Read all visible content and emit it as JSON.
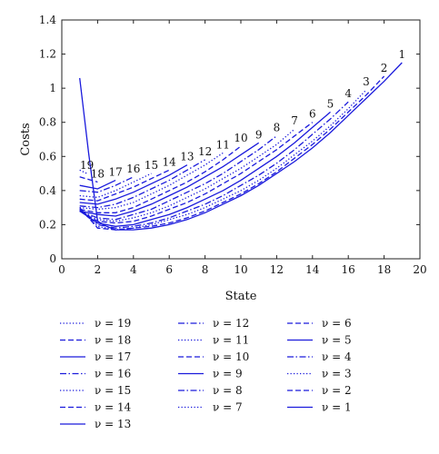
{
  "chart_data": {
    "type": "line",
    "xlabel": "State",
    "ylabel": "Costs",
    "xlim": [
      0,
      20
    ],
    "ylim": [
      0,
      1.4
    ],
    "xticks": [
      "0",
      "2",
      "4",
      "6",
      "8",
      "10",
      "12",
      "14",
      "16",
      "18",
      "20"
    ],
    "yticks": [
      "0",
      "0.2",
      "0.4",
      "0.6",
      "0.8",
      "1",
      "1.2",
      "1.4"
    ],
    "grid": false,
    "legend_position": "below",
    "color": "#1a1adc",
    "series": [
      {
        "v": 1,
        "label": "1",
        "legend": "ν = 1",
        "style": "solid",
        "x": [
          1,
          1.5,
          2,
          2.5,
          3,
          4,
          5,
          6,
          7,
          8,
          9,
          10,
          11,
          12,
          13,
          14,
          15,
          16,
          17,
          18,
          19
        ],
        "y": [
          1.06,
          0.62,
          0.22,
          0.19,
          0.17,
          0.17,
          0.18,
          0.2,
          0.23,
          0.27,
          0.32,
          0.37,
          0.43,
          0.5,
          0.57,
          0.65,
          0.74,
          0.84,
          0.94,
          1.04,
          1.15
        ]
      },
      {
        "v": 2,
        "label": "2",
        "legend": "ν = 2",
        "style": "dashed",
        "x": [
          1,
          2,
          3,
          4,
          5,
          6,
          7,
          8,
          9,
          10,
          11,
          12,
          13,
          14,
          15,
          16,
          17,
          18
        ],
        "y": [
          0.3,
          0.18,
          0.17,
          0.18,
          0.19,
          0.21,
          0.24,
          0.28,
          0.33,
          0.38,
          0.44,
          0.51,
          0.59,
          0.67,
          0.76,
          0.86,
          0.96,
          1.07
        ]
      },
      {
        "v": 3,
        "label": "3",
        "legend": "ν = 3",
        "style": "dotted",
        "x": [
          1,
          2,
          3,
          4,
          5,
          6,
          7,
          8,
          9,
          10,
          11,
          12,
          13,
          14,
          15,
          16,
          17
        ],
        "y": [
          0.29,
          0.19,
          0.17,
          0.18,
          0.2,
          0.23,
          0.26,
          0.3,
          0.35,
          0.4,
          0.46,
          0.53,
          0.61,
          0.69,
          0.78,
          0.88,
          0.99
        ]
      },
      {
        "v": 4,
        "label": "4",
        "legend": "ν = 4",
        "style": "dashdot",
        "x": [
          1,
          2,
          3,
          4,
          5,
          6,
          7,
          8,
          9,
          10,
          11,
          12,
          13,
          14,
          15,
          16
        ],
        "y": [
          0.29,
          0.2,
          0.18,
          0.19,
          0.21,
          0.24,
          0.28,
          0.32,
          0.37,
          0.43,
          0.49,
          0.56,
          0.64,
          0.73,
          0.82,
          0.92
        ]
      },
      {
        "v": 5,
        "label": "5",
        "legend": "ν = 5",
        "style": "solid",
        "x": [
          1,
          2,
          3,
          4,
          5,
          6,
          7,
          8,
          9,
          10,
          11,
          12,
          13,
          14,
          15
        ],
        "y": [
          0.28,
          0.21,
          0.19,
          0.2,
          0.23,
          0.26,
          0.3,
          0.35,
          0.4,
          0.46,
          0.53,
          0.6,
          0.68,
          0.77,
          0.86
        ]
      },
      {
        "v": 6,
        "label": "6",
        "legend": "ν = 6",
        "style": "dashed",
        "x": [
          1,
          2,
          3,
          4,
          5,
          6,
          7,
          8,
          9,
          10,
          11,
          12,
          13,
          14
        ],
        "y": [
          0.28,
          0.22,
          0.21,
          0.22,
          0.25,
          0.29,
          0.33,
          0.38,
          0.44,
          0.5,
          0.57,
          0.64,
          0.72,
          0.8
        ]
      },
      {
        "v": 7,
        "label": "7",
        "legend": "ν = 7",
        "style": "dotted",
        "x": [
          1,
          2,
          3,
          4,
          5,
          6,
          7,
          8,
          9,
          10,
          11,
          12,
          13
        ],
        "y": [
          0.28,
          0.23,
          0.22,
          0.24,
          0.27,
          0.31,
          0.36,
          0.41,
          0.47,
          0.53,
          0.6,
          0.67,
          0.76
        ]
      },
      {
        "v": 8,
        "label": "8",
        "legend": "ν = 8",
        "style": "dashdot",
        "x": [
          1,
          2,
          3,
          4,
          5,
          6,
          7,
          8,
          9,
          10,
          11,
          12
        ],
        "y": [
          0.28,
          0.24,
          0.23,
          0.26,
          0.29,
          0.34,
          0.39,
          0.44,
          0.5,
          0.57,
          0.64,
          0.72
        ]
      },
      {
        "v": 9,
        "label": "9",
        "legend": "ν = 9",
        "style": "solid",
        "x": [
          1,
          2,
          3,
          4,
          5,
          6,
          7,
          8,
          9,
          10,
          11
        ],
        "y": [
          0.28,
          0.26,
          0.25,
          0.28,
          0.32,
          0.37,
          0.42,
          0.48,
          0.54,
          0.61,
          0.68
        ]
      },
      {
        "v": 10,
        "label": "10",
        "legend": "ν = 10",
        "style": "dashed",
        "x": [
          1,
          2,
          3,
          4,
          5,
          6,
          7,
          8,
          9,
          10
        ],
        "y": [
          0.29,
          0.27,
          0.27,
          0.3,
          0.35,
          0.4,
          0.45,
          0.51,
          0.58,
          0.66
        ]
      },
      {
        "v": 11,
        "label": "11",
        "legend": "ν = 11",
        "style": "dotted",
        "x": [
          1,
          2,
          3,
          4,
          5,
          6,
          7,
          8,
          9
        ],
        "y": [
          0.3,
          0.29,
          0.3,
          0.33,
          0.38,
          0.43,
          0.49,
          0.55,
          0.62
        ]
      },
      {
        "v": 12,
        "label": "12",
        "legend": "ν = 12",
        "style": "dashdot",
        "x": [
          1,
          2,
          3,
          4,
          5,
          6,
          7,
          8
        ],
        "y": [
          0.31,
          0.3,
          0.32,
          0.36,
          0.41,
          0.46,
          0.52,
          0.58
        ]
      },
      {
        "v": 13,
        "label": "13",
        "legend": "ν = 13",
        "style": "solid",
        "x": [
          1,
          2,
          3,
          4,
          5,
          6,
          7
        ],
        "y": [
          0.33,
          0.32,
          0.35,
          0.39,
          0.44,
          0.49,
          0.55
        ]
      },
      {
        "v": 14,
        "label": "14",
        "legend": "ν = 14",
        "style": "dashed",
        "x": [
          1,
          2,
          3,
          4,
          5,
          6
        ],
        "y": [
          0.35,
          0.34,
          0.38,
          0.42,
          0.47,
          0.52
        ]
      },
      {
        "v": 15,
        "label": "15",
        "legend": "ν = 15",
        "style": "dotted",
        "x": [
          1,
          2,
          3,
          4,
          5
        ],
        "y": [
          0.37,
          0.36,
          0.4,
          0.45,
          0.5
        ]
      },
      {
        "v": 16,
        "label": "16",
        "legend": "ν = 16",
        "style": "dashdot",
        "x": [
          1,
          2,
          3,
          4
        ],
        "y": [
          0.4,
          0.39,
          0.43,
          0.48
        ]
      },
      {
        "v": 17,
        "label": "17",
        "legend": "ν = 17",
        "style": "solid",
        "x": [
          1,
          2,
          3
        ],
        "y": [
          0.43,
          0.41,
          0.46
        ]
      },
      {
        "v": 18,
        "label": "18",
        "legend": "ν = 18",
        "style": "dashed",
        "x": [
          1,
          2
        ],
        "y": [
          0.48,
          0.45
        ]
      },
      {
        "v": 19,
        "label": "19",
        "legend": "ν = 19",
        "style": "dotted",
        "x": [
          1,
          1.4
        ],
        "y": [
          0.52,
          0.5
        ]
      }
    ]
  }
}
